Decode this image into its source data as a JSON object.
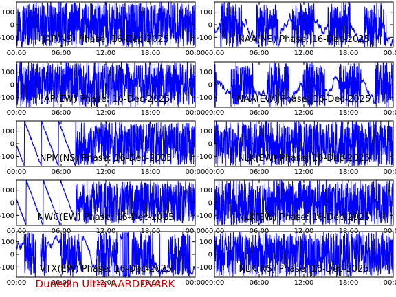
{
  "colors": {
    "trace": "#0000ff",
    "axes": "#000000",
    "footer": "#cc0000",
    "background": "#ffffff"
  },
  "footer": {
    "text": "Dunedin Ultra AARDDVARK"
  },
  "chart_data": [
    {
      "type": "line",
      "title": "JAP(NS) Phase: 16-Dec-2025",
      "x_ticks": [
        "00:00",
        "06:00",
        "12:00",
        "18:00",
        "00:00"
      ],
      "y_ticks": [
        100,
        0,
        -100
      ],
      "ylim": [
        -180,
        180
      ],
      "pattern": "dense",
      "gaps": []
    },
    {
      "type": "line",
      "title": "NAA(NS) Phase: 16-Dec-2025",
      "x_ticks": [
        "00:00",
        "06:00",
        "12:00",
        "18:00",
        "00:00"
      ],
      "y_ticks": [
        100,
        0,
        -100
      ],
      "ylim": [
        -180,
        180
      ],
      "pattern": "mixed",
      "gaps": []
    },
    {
      "type": "line",
      "title": "JAP(EW) Phase: 16-Dec-2025",
      "x_ticks": [
        "00:00",
        "06:00",
        "12:00",
        "18:00",
        "00:00"
      ],
      "y_ticks": [
        100,
        0,
        -100
      ],
      "ylim": [
        -180,
        180
      ],
      "pattern": "dense",
      "gaps": []
    },
    {
      "type": "line",
      "title": "NAA(EW) Phase: 16-Dec-2025",
      "x_ticks": [
        "00:00",
        "06:00",
        "12:00",
        "18:00",
        "00:00"
      ],
      "y_ticks": [
        100,
        0,
        -100
      ],
      "ylim": [
        -180,
        180
      ],
      "pattern": "mixed",
      "gaps": []
    },
    {
      "type": "line",
      "title": "NPM(NS) Phase: 16-Dec-2025",
      "x_ticks": [
        "00:00",
        "06:00",
        "12:00",
        "18:00",
        "00:00"
      ],
      "y_ticks": [
        100,
        0,
        -100
      ],
      "ylim": [
        -180,
        180
      ],
      "pattern": "sawtooth",
      "gaps": []
    },
    {
      "type": "line",
      "title": "NLK(EW) Phase: 16-Dec-2025",
      "x_ticks": [
        "00:00",
        "06:00",
        "12:00",
        "18:00",
        "00:00"
      ],
      "y_ticks": [
        100,
        0,
        -100
      ],
      "ylim": [
        -180,
        180
      ],
      "pattern": "dense",
      "gaps": []
    },
    {
      "type": "line",
      "title": "NWC(EW) Phase: 16-Dec-2025",
      "x_ticks": [
        "00:00",
        "06:00",
        "12:00",
        "18:00",
        "00:00"
      ],
      "y_ticks": [
        100,
        0,
        -100
      ],
      "ylim": [
        -180,
        180
      ],
      "pattern": "sawtooth",
      "gaps": []
    },
    {
      "type": "line",
      "title": "NLK(EW) Phase: 16-Dec-2025",
      "x_ticks": [
        "00:00",
        "06:00",
        "12:00",
        "18:00",
        "00:00"
      ],
      "y_ticks": [
        100,
        0,
        -100
      ],
      "ylim": [
        -180,
        180
      ],
      "pattern": "dense",
      "gaps": []
    },
    {
      "type": "line",
      "title": "VTX(EW) Phase: 16-Dec-2025",
      "x_ticks": [
        "00:00",
        "06:00",
        "12:00",
        "18:00",
        "00:00"
      ],
      "y_ticks": [
        100,
        0,
        -100
      ],
      "ylim": [
        -180,
        180
      ],
      "pattern": "mixed",
      "gaps": [
        [
          2.6,
          3.2
        ]
      ]
    },
    {
      "type": "line",
      "title": "NLK(NS) Phase: 16-Dec-2025",
      "x_ticks": [
        "00:00",
        "06:00",
        "12:00",
        "18:00",
        "00:00"
      ],
      "y_ticks": [
        100,
        0,
        -100
      ],
      "ylim": [
        -180,
        180
      ],
      "pattern": "dense",
      "gaps": []
    }
  ]
}
